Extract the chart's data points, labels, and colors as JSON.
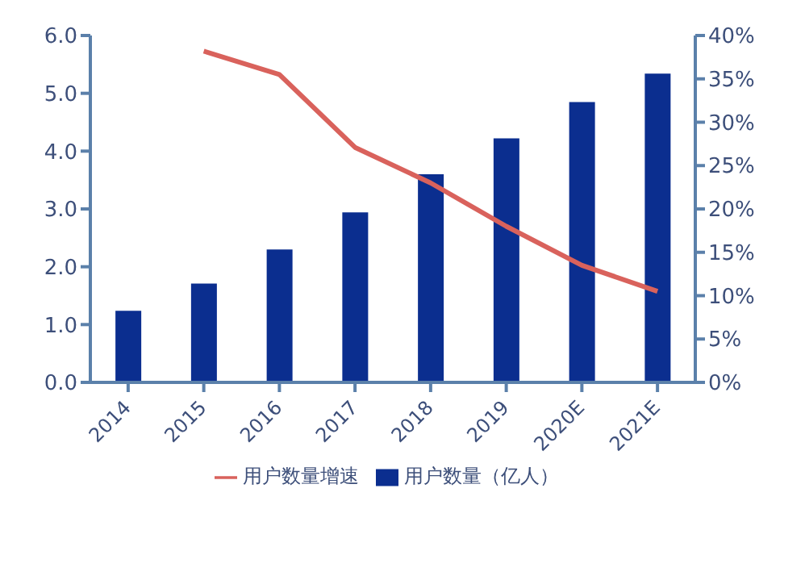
{
  "chart_data": {
    "type": "bar",
    "categories": [
      "2014",
      "2015",
      "2016",
      "2017",
      "2018",
      "2019",
      "2020E",
      "2021E"
    ],
    "series": [
      {
        "name": "用户数量（亿人）",
        "color": "#0b2e8f",
        "values": [
          1.24,
          1.71,
          2.3,
          2.94,
          3.6,
          4.22,
          4.85,
          5.34
        ]
      },
      {
        "name": "用户数量增速",
        "type": "line",
        "axis": "y2",
        "color": "#d9625c",
        "values": [
          null,
          38.2,
          35.5,
          27.1,
          23,
          18,
          13.5,
          10.5
        ]
      }
    ],
    "ylim": [
      0,
      6
    ],
    "yticks": [
      {
        "value": 0,
        "label": "0.0"
      },
      {
        "value": 1,
        "label": "1.0"
      },
      {
        "value": 2,
        "label": "2.0"
      },
      {
        "value": 3,
        "label": "3.0"
      },
      {
        "value": 4,
        "label": "4.0"
      },
      {
        "value": 5,
        "label": "5.0"
      },
      {
        "value": 6,
        "label": "6.0"
      }
    ],
    "y2lim": [
      0,
      40
    ],
    "y2ticks": [
      {
        "value": 0,
        "label": "0%"
      },
      {
        "value": 5,
        "label": "5%"
      },
      {
        "value": 10,
        "label": "10%"
      },
      {
        "value": 15,
        "label": "15%"
      },
      {
        "value": 20,
        "label": "20%"
      },
      {
        "value": 25,
        "label": "25%"
      },
      {
        "value": 30,
        "label": "30%"
      },
      {
        "value": 35,
        "label": "35%"
      },
      {
        "value": 40,
        "label": "40%"
      }
    ],
    "grid": false,
    "legend": "bottom",
    "marker": "none",
    "line_style": "solid"
  }
}
